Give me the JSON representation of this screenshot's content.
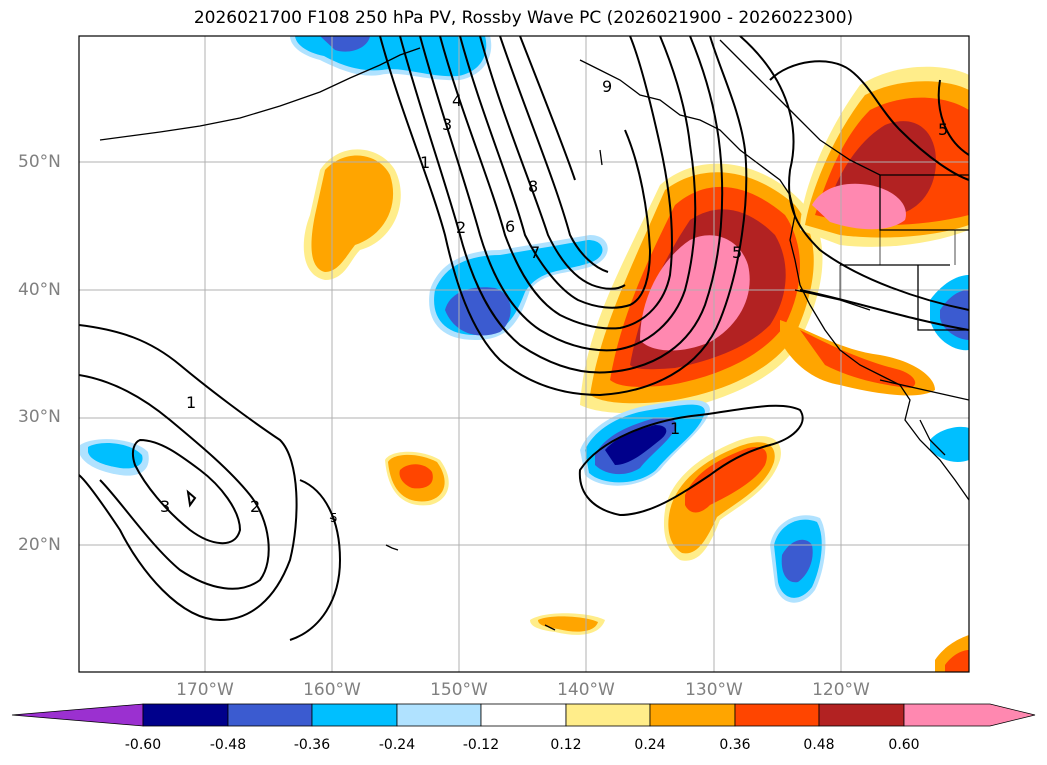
{
  "title": "2026021700 F108 250 hPa PV, Rossby Wave PC (2026021900 - 2026022300)",
  "lat_labels": [
    "50°N",
    "40°N",
    "30°N",
    "20°N"
  ],
  "lon_labels": [
    "170°W",
    "160°W",
    "150°W",
    "140°W",
    "130°W",
    "120°W"
  ],
  "contour_labels": [
    "1",
    "2",
    "3",
    "4",
    "5",
    "6",
    "7",
    "8",
    "9",
    "1",
    "2",
    "3",
    "1",
    "5",
    "5"
  ],
  "colorbar": {
    "ticks": [
      "-0.60",
      "-0.48",
      "-0.36",
      "-0.24",
      "-0.12",
      "0.12",
      "0.24",
      "0.36",
      "0.48",
      "0.60"
    ],
    "colors": [
      "#9b30d0",
      "#00008b",
      "#3b5bd0",
      "#00bfff",
      "#b0e2ff",
      "#ffffff",
      "#ffed8a",
      "#ffa500",
      "#ff4500",
      "#b22222",
      "#ff88b0"
    ]
  }
}
